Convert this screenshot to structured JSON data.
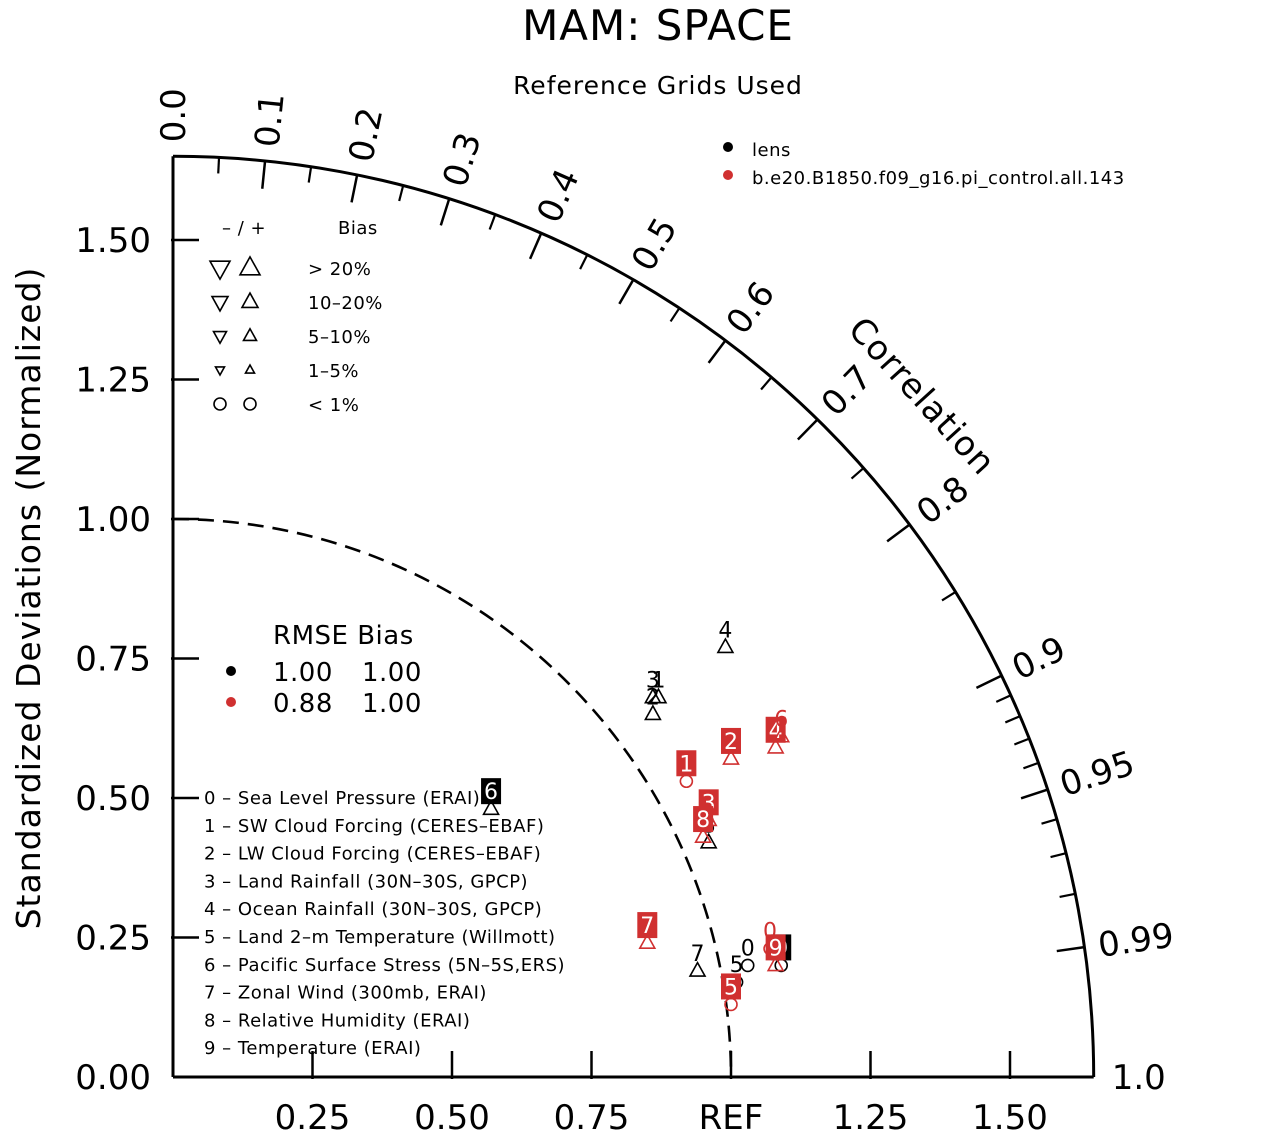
{
  "chart_data": {
    "type": "scatter",
    "title": "MAM: SPACE",
    "subtitle": "Reference Grids Used",
    "ylabel": "Standardized Deviations (Normalized)",
    "corr_label": "Correlation",
    "ref_label": "REF",
    "ylim": [
      0,
      1.65
    ],
    "xlim": [
      0,
      1.65
    ],
    "std_ticks": [
      "0.00",
      "0.25",
      "0.50",
      "0.75",
      "1.00",
      "1.25",
      "1.50"
    ],
    "x_ticks": [
      "0.25",
      "0.50",
      "0.75",
      "1.25",
      "1.50"
    ],
    "corr_ticks": [
      "0.0",
      "0.1",
      "0.2",
      "0.3",
      "0.4",
      "0.5",
      "0.6",
      "0.7",
      "0.8",
      "0.9",
      "0.95",
      "0.99",
      "1.0"
    ],
    "legend": {
      "series": [
        {
          "name": "lens",
          "color": "#000000"
        },
        {
          "name": "b.e20.B1850.f09_g16.pi_control.all.143",
          "color": "#d03030"
        }
      ],
      "bias_header": {
        "sign": "– / +",
        "label": "Bias"
      },
      "bias_rows": [
        "> 20%",
        "10–20%",
        "5–10%",
        "1–5%",
        "< 1%"
      ],
      "rmse_header": "RMSE Bias",
      "rmse_rows": [
        {
          "color": "#000000",
          "rmse": "1.00",
          "bias": "1.00"
        },
        {
          "color": "#d03030",
          "rmse": "0.88",
          "bias": "1.00"
        }
      ]
    },
    "variables": [
      "0 – Sea Level Pressure (ERAI)",
      "1 – SW Cloud Forcing (CERES–EBAF)",
      "2 – LW Cloud Forcing (CERES–EBAF)",
      "3 – Land Rainfall (30N–30S, GPCP)",
      "4 – Ocean Rainfall (30N–30S, GPCP)",
      "5 – Land 2–m Temperature (Willmott)",
      "6 – Pacific Surface Stress (5N–5S,ERS)",
      "7 – Zonal Wind (300mb, ERAI)",
      "8 – Relative Humidity (ERAI)",
      "9 – Temperature (ERAI)"
    ],
    "series": [
      {
        "name": "lens",
        "color": "#000000",
        "points": [
          {
            "id": "0",
            "x": 1.03,
            "y": 0.2,
            "marker": "circle",
            "boxed": false
          },
          {
            "id": "1",
            "x": 0.87,
            "y": 0.68,
            "marker": "up",
            "boxed": false
          },
          {
            "id": "2",
            "x": 0.86,
            "y": 0.65,
            "marker": "up",
            "boxed": false
          },
          {
            "id": "3",
            "x": 0.86,
            "y": 0.68,
            "marker": "up",
            "boxed": false
          },
          {
            "id": "4",
            "x": 0.99,
            "y": 0.77,
            "marker": "up",
            "boxed": false
          },
          {
            "id": "5",
            "x": 1.01,
            "y": 0.17,
            "marker": "circle",
            "boxed": false
          },
          {
            "id": "6",
            "x": 0.57,
            "y": 0.48,
            "marker": "up",
            "boxed": true
          },
          {
            "id": "7",
            "x": 0.94,
            "y": 0.19,
            "marker": "up",
            "boxed": false
          },
          {
            "id": "8",
            "x": 0.96,
            "y": 0.42,
            "marker": "up",
            "boxed": false
          },
          {
            "id": "9",
            "x": 1.09,
            "y": 0.2,
            "marker": "circle",
            "boxed": true
          }
        ]
      },
      {
        "name": "b.e20.B1850.f09_g16.pi_control.all.143",
        "color": "#d03030",
        "points": [
          {
            "id": "0",
            "x": 1.07,
            "y": 0.23,
            "marker": "circle",
            "boxed": false
          },
          {
            "id": "1",
            "x": 0.92,
            "y": 0.53,
            "marker": "circle",
            "boxed": true
          },
          {
            "id": "2",
            "x": 1.0,
            "y": 0.57,
            "marker": "up",
            "boxed": true
          },
          {
            "id": "3",
            "x": 0.96,
            "y": 0.46,
            "marker": "up",
            "boxed": true
          },
          {
            "id": "4",
            "x": 1.08,
            "y": 0.59,
            "marker": "up",
            "boxed": true
          },
          {
            "id": "5",
            "x": 1.0,
            "y": 0.13,
            "marker": "circle",
            "boxed": true
          },
          {
            "id": "6",
            "x": 1.09,
            "y": 0.61,
            "marker": "up",
            "boxed": false
          },
          {
            "id": "7",
            "x": 0.85,
            "y": 0.24,
            "marker": "up",
            "boxed": true
          },
          {
            "id": "8",
            "x": 0.95,
            "y": 0.43,
            "marker": "up",
            "boxed": true
          },
          {
            "id": "9",
            "x": 1.08,
            "y": 0.2,
            "marker": "up",
            "boxed": true
          }
        ]
      }
    ]
  }
}
